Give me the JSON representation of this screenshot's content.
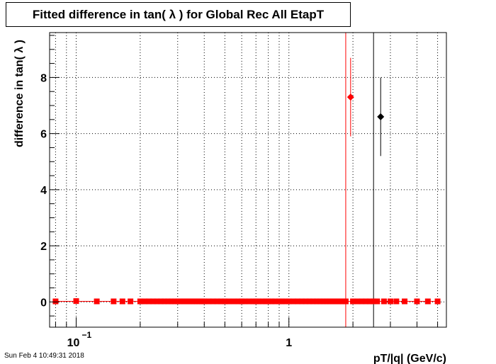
{
  "title": "Fitted difference in tan( λ ) for Global Rec All EtapT",
  "timestamp": "Sun Feb  4 10:49:31 2018",
  "chart_data": {
    "type": "scatter",
    "title": "Fitted difference in tan( λ ) for Global Rec All EtapT",
    "xlabel": "pT/|q| (GeV/c)",
    "ylabel": "difference in tan( λ )",
    "x_scale": "log",
    "xlim": [
      0.075,
      5.5
    ],
    "ylim": [
      -0.9,
      9.6
    ],
    "grid": true,
    "x_ticks": [
      {
        "value": 0.1,
        "label": "10",
        "exponent": "−1"
      },
      {
        "value": 1,
        "label": "1",
        "exponent": ""
      }
    ],
    "y_ticks": [
      {
        "value": 0,
        "label": "0"
      },
      {
        "value": 2,
        "label": "2"
      },
      {
        "value": 4,
        "label": "4"
      },
      {
        "value": 6,
        "label": "6"
      },
      {
        "value": 8,
        "label": "8"
      }
    ],
    "colors": {
      "red_series": "#ff0000",
      "black_series": "#000000"
    },
    "series": [
      {
        "color": "#ff0000",
        "marker": "square",
        "x": [
          0.08,
          0.1,
          0.125,
          0.15,
          0.165,
          0.18,
          0.2,
          0.21,
          0.22,
          0.23,
          0.24,
          0.25,
          0.26,
          0.27,
          0.28,
          0.29,
          0.3,
          0.31,
          0.32,
          0.33,
          0.34,
          0.35,
          0.36,
          0.37,
          0.38,
          0.39,
          0.4,
          0.42,
          0.44,
          0.46,
          0.48,
          0.5,
          0.52,
          0.55,
          0.58,
          0.6,
          0.62,
          0.65,
          0.68,
          0.7,
          0.72,
          0.75,
          0.78,
          0.8,
          0.83,
          0.86,
          0.9,
          0.93,
          0.96,
          1.0,
          1.05,
          1.1,
          1.15,
          1.2,
          1.25,
          1.3,
          1.35,
          1.4,
          1.45,
          1.5,
          1.55,
          1.6,
          1.65,
          1.7,
          1.75,
          1.8,
          1.85,
          2.0,
          2.1,
          2.2,
          2.3,
          2.4,
          2.5,
          2.6,
          2.8,
          3.0,
          3.2,
          3.5,
          4.0,
          4.5,
          5.0
        ],
        "y": [
          0.02,
          0.03,
          0.02,
          0.02,
          0.02,
          0.02,
          0.02,
          0.02,
          0.02,
          0.02,
          0.02,
          0.02,
          0.02,
          0.02,
          0.02,
          0.02,
          0.02,
          0.02,
          0.02,
          0.02,
          0.02,
          0.02,
          0.02,
          0.02,
          0.02,
          0.02,
          0.02,
          0.02,
          0.02,
          0.02,
          0.02,
          0.02,
          0.02,
          0.02,
          0.02,
          0.02,
          0.02,
          0.02,
          0.02,
          0.02,
          0.02,
          0.02,
          0.02,
          0.02,
          0.02,
          0.02,
          0.02,
          0.02,
          0.02,
          0.02,
          0.02,
          0.02,
          0.02,
          0.02,
          0.02,
          0.02,
          0.02,
          0.02,
          0.02,
          0.02,
          0.02,
          0.02,
          0.02,
          0.02,
          0.02,
          0.02,
          0.02,
          0.02,
          0.02,
          0.02,
          0.02,
          0.02,
          0.02,
          0.02,
          0.02,
          0.02,
          0.02,
          0.02,
          0.02,
          0.02,
          0.02
        ]
      },
      {
        "color": "#ff0000",
        "marker": "diamond",
        "x": [
          1.95
        ],
        "y": [
          7.3
        ],
        "yerr": [
          1.4
        ]
      },
      {
        "color": "#000000",
        "marker": "diamond",
        "x": [
          2.7
        ],
        "y": [
          6.6
        ],
        "yerr": [
          1.4
        ]
      }
    ],
    "vertical_lines": [
      {
        "x": 1.85,
        "color": "#ff0000"
      },
      {
        "x": 2.5,
        "color": "#000000"
      }
    ]
  }
}
